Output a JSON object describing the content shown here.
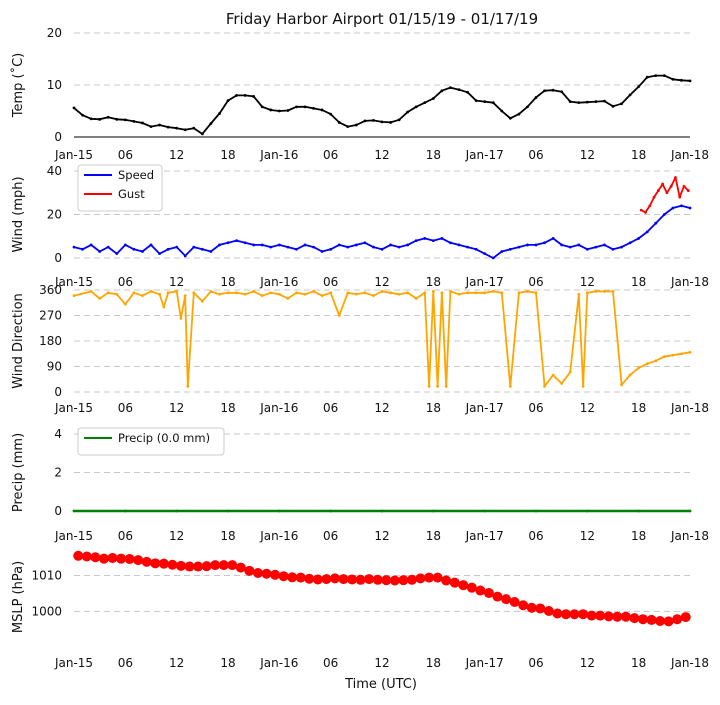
{
  "chart_data": [
    {
      "type": "line",
      "title": "Friday Harbor Airport 01/15/19 - 01/17/19",
      "ylabel": "Temp ($^\\circ$C)",
      "ylabel_display": "Temp (˚C)",
      "ylim": [
        0,
        20
      ],
      "yticks": [
        "0",
        "10",
        "20"
      ],
      "xticklabels": [
        "Jan-15",
        "06",
        "12",
        "18",
        "Jan-16",
        "06",
        "12",
        "18",
        "Jan-17",
        "06",
        "12",
        "18",
        "Jan-18"
      ],
      "grid": true,
      "series": [
        {
          "color": "#000000",
          "x": [
            0,
            1,
            2,
            3,
            4,
            5,
            6,
            7,
            8,
            9,
            10,
            11,
            12,
            13,
            14,
            15,
            16,
            17,
            18,
            19,
            20,
            21,
            22,
            23,
            24,
            25,
            26,
            27,
            28,
            29,
            30,
            31,
            32,
            33,
            34,
            35,
            36,
            37,
            38,
            39,
            40,
            41,
            42,
            43,
            44,
            45,
            46,
            47,
            48,
            49,
            50,
            51,
            52,
            53,
            54,
            55,
            56,
            57,
            58,
            59,
            60,
            61,
            62,
            63,
            64,
            65,
            66,
            67,
            68,
            69,
            70,
            71,
            72
          ],
          "values": [
            5.6,
            4.2,
            3.5,
            3.4,
            3.8,
            3.4,
            3.3,
            3.0,
            2.7,
            2.0,
            2.3,
            1.9,
            1.7,
            1.4,
            1.7,
            0.6,
            2.6,
            4.5,
            7.0,
            8.0,
            8.0,
            7.8,
            5.8,
            5.2,
            5.0,
            5.1,
            5.8,
            5.8,
            5.5,
            5.2,
            4.4,
            2.8,
            2.0,
            2.3,
            3.1,
            3.2,
            2.9,
            2.8,
            3.3,
            4.8,
            5.8,
            6.6,
            7.4,
            8.9,
            9.5,
            9.1,
            8.6,
            7.0,
            6.8,
            6.6,
            5.0,
            3.6,
            4.4,
            5.8,
            7.6,
            8.9,
            9.0,
            8.7,
            6.8,
            6.6,
            6.7,
            6.8,
            6.9,
            5.9,
            6.4,
            8.1,
            9.7,
            11.5,
            11.8,
            11.8,
            11.1,
            10.9,
            10.8
          ]
        }
      ]
    },
    {
      "type": "line",
      "ylabel": "Wind (mph)",
      "ylim": [
        0,
        40
      ],
      "yticks": [
        "0",
        "20",
        "40"
      ],
      "xticklabels": [
        "Jan-15",
        "06",
        "12",
        "18",
        "Jan-16",
        "06",
        "12",
        "18",
        "Jan-17",
        "06",
        "12",
        "18",
        "Jan-18"
      ],
      "grid": true,
      "legend": "upper-left",
      "series": [
        {
          "name": "Speed",
          "color": "#0000ff",
          "x": [
            0,
            1,
            2,
            3,
            4,
            5,
            6,
            7,
            8,
            9,
            10,
            11,
            12,
            13,
            14,
            15,
            16,
            17,
            18,
            19,
            20,
            21,
            22,
            23,
            24,
            25,
            26,
            27,
            28,
            29,
            30,
            31,
            32,
            33,
            34,
            35,
            36,
            37,
            38,
            39,
            40,
            41,
            42,
            43,
            44,
            45,
            46,
            47,
            48,
            49,
            50,
            51,
            52,
            53,
            54,
            55,
            56,
            57,
            58,
            59,
            60,
            61,
            62,
            63,
            64,
            65,
            66,
            67,
            68,
            69,
            70,
            71,
            72
          ],
          "values": [
            5,
            4,
            6,
            3,
            5,
            2,
            6,
            4,
            3,
            6,
            2,
            4,
            5,
            1,
            5,
            4,
            3,
            6,
            7,
            8,
            7,
            6,
            6,
            5,
            6,
            5,
            4,
            6,
            5,
            3,
            4,
            6,
            5,
            6,
            7,
            5,
            4,
            6,
            5,
            6,
            8,
            9,
            8,
            9,
            7,
            6,
            5,
            4,
            2,
            0,
            3,
            4,
            5,
            6,
            6,
            7,
            9,
            6,
            5,
            6,
            4,
            5,
            6,
            4,
            5,
            7,
            9,
            12,
            16,
            20,
            23,
            24,
            23
          ]
        },
        {
          "name": "Gust",
          "color": "#ff0000",
          "x": [
            66.3,
            66.8,
            67.3,
            67.8,
            68.3,
            68.8,
            69.3,
            69.8,
            70.3,
            70.8,
            71.3,
            71.8
          ],
          "values": [
            22,
            21,
            24,
            28,
            31,
            34,
            30,
            33,
            37,
            28,
            33,
            31
          ]
        }
      ]
    },
    {
      "type": "line",
      "ylabel": "Wind Direction",
      "ylim": [
        0,
        360
      ],
      "yticks": [
        "0",
        "90",
        "180",
        "270",
        "360"
      ],
      "xticklabels": [
        "Jan-15",
        "06",
        "12",
        "18",
        "Jan-16",
        "06",
        "12",
        "18",
        "Jan-17",
        "06",
        "12",
        "18",
        "Jan-18"
      ],
      "grid": true,
      "series": [
        {
          "color": "#ffa500",
          "x": [
            0,
            2,
            3,
            4,
            5,
            6,
            7,
            8,
            9,
            10,
            10.5,
            11,
            12,
            12.5,
            13,
            13.3,
            14,
            15,
            16,
            17,
            18,
            19,
            20,
            21,
            22,
            23,
            24,
            25,
            26,
            27,
            28,
            29,
            30,
            31,
            32,
            33,
            34,
            35,
            36,
            37,
            38,
            39,
            40,
            41,
            41.5,
            42,
            42.5,
            43,
            43.5,
            44,
            45,
            46,
            47,
            48,
            49,
            50,
            51,
            52,
            53,
            54,
            55,
            56,
            57,
            58,
            59,
            59.5,
            60,
            61,
            62,
            63,
            64,
            65,
            66,
            67,
            68,
            69,
            70,
            71,
            72
          ],
          "values": [
            340,
            355,
            330,
            350,
            345,
            310,
            350,
            340,
            355,
            345,
            300,
            350,
            355,
            260,
            340,
            20,
            350,
            320,
            355,
            345,
            350,
            350,
            345,
            355,
            340,
            350,
            345,
            330,
            350,
            345,
            355,
            340,
            350,
            270,
            350,
            345,
            350,
            340,
            355,
            350,
            345,
            350,
            330,
            350,
            20,
            355,
            20,
            350,
            20,
            355,
            345,
            350,
            350,
            350,
            355,
            350,
            20,
            350,
            355,
            350,
            20,
            60,
            30,
            70,
            345,
            20,
            350,
            355,
            355,
            355,
            25,
            60,
            85,
            100,
            110,
            125,
            130,
            135,
            140
          ]
        }
      ]
    },
    {
      "type": "line",
      "ylabel": "Precip (mm)",
      "ylim": [
        0,
        4
      ],
      "yticks": [
        "0",
        "2",
        "4"
      ],
      "xticklabels": [
        "Jan-15",
        "06",
        "12",
        "18",
        "Jan-16",
        "06",
        "12",
        "18",
        "Jan-17",
        "06",
        "12",
        "18",
        "Jan-18"
      ],
      "grid": true,
      "legend": "upper-left",
      "series": [
        {
          "name": "Precip (0.0 mm)",
          "color": "#008000",
          "x": [
            0,
            6,
            12,
            18,
            24,
            30,
            36,
            42,
            48,
            54,
            60,
            66,
            72
          ],
          "values": [
            0,
            0,
            0,
            0,
            0,
            0,
            0,
            0,
            0,
            0,
            0,
            0,
            0
          ]
        }
      ]
    },
    {
      "type": "scatter",
      "ylabel": "MSLP (hPa)",
      "xlabel": "Time (UTC)",
      "ylim": [
        992,
        1016
      ],
      "yticks": [
        "1000",
        "1010"
      ],
      "xticklabels": [
        "Jan-15",
        "06",
        "12",
        "18",
        "Jan-16",
        "06",
        "12",
        "18",
        "Jan-17",
        "06",
        "12",
        "18",
        "Jan-18"
      ],
      "grid": true,
      "series": [
        {
          "color": "#ff0000",
          "x": [
            0.5,
            1.5,
            2.5,
            3.5,
            4.5,
            5.5,
            6.5,
            7.5,
            8.5,
            9.5,
            10.5,
            11.5,
            12.5,
            13.5,
            14.5,
            15.5,
            16.5,
            17.5,
            18.5,
            19.5,
            20.5,
            21.5,
            22.5,
            23.5,
            24.5,
            25.5,
            26.5,
            27.5,
            28.5,
            29.5,
            30.5,
            31.5,
            32.5,
            33.5,
            34.5,
            35.5,
            36.5,
            37.5,
            38.5,
            39.5,
            40.5,
            41.5,
            42.5,
            43.5,
            44.5,
            45.5,
            46.5,
            47.5,
            48.5,
            49.5,
            50.5,
            51.5,
            52.5,
            53.5,
            54.5,
            55.5,
            56.5,
            57.5,
            58.5,
            59.5,
            60.5,
            61.5,
            62.5,
            63.5,
            64.5,
            65.5,
            66.5,
            67.5,
            68.5,
            69.5,
            70.5,
            71.5
          ],
          "values": [
            1015.5,
            1015.3,
            1015.1,
            1014.7,
            1014.9,
            1014.7,
            1014.6,
            1014.3,
            1013.8,
            1013.4,
            1013.3,
            1013.0,
            1012.7,
            1012.5,
            1012.5,
            1012.6,
            1012.9,
            1012.9,
            1012.9,
            1012.2,
            1011.3,
            1010.7,
            1010.5,
            1010.2,
            1009.8,
            1009.5,
            1009.4,
            1009.1,
            1008.9,
            1009.0,
            1009.2,
            1009.0,
            1008.9,
            1008.8,
            1009.0,
            1008.8,
            1008.7,
            1008.6,
            1008.7,
            1008.8,
            1009.2,
            1009.4,
            1009.4,
            1008.6,
            1008.0,
            1007.3,
            1006.6,
            1005.8,
            1005.1,
            1004.1,
            1003.4,
            1002.6,
            1001.7,
            1001.0,
            1000.8,
            1000.1,
            999.4,
            999.2,
            999.2,
            999.2,
            998.8,
            998.8,
            998.6,
            998.5,
            998.5,
            998.1,
            997.8,
            997.6,
            997.3,
            997.2,
            997.8,
            998.4
          ]
        }
      ]
    }
  ]
}
